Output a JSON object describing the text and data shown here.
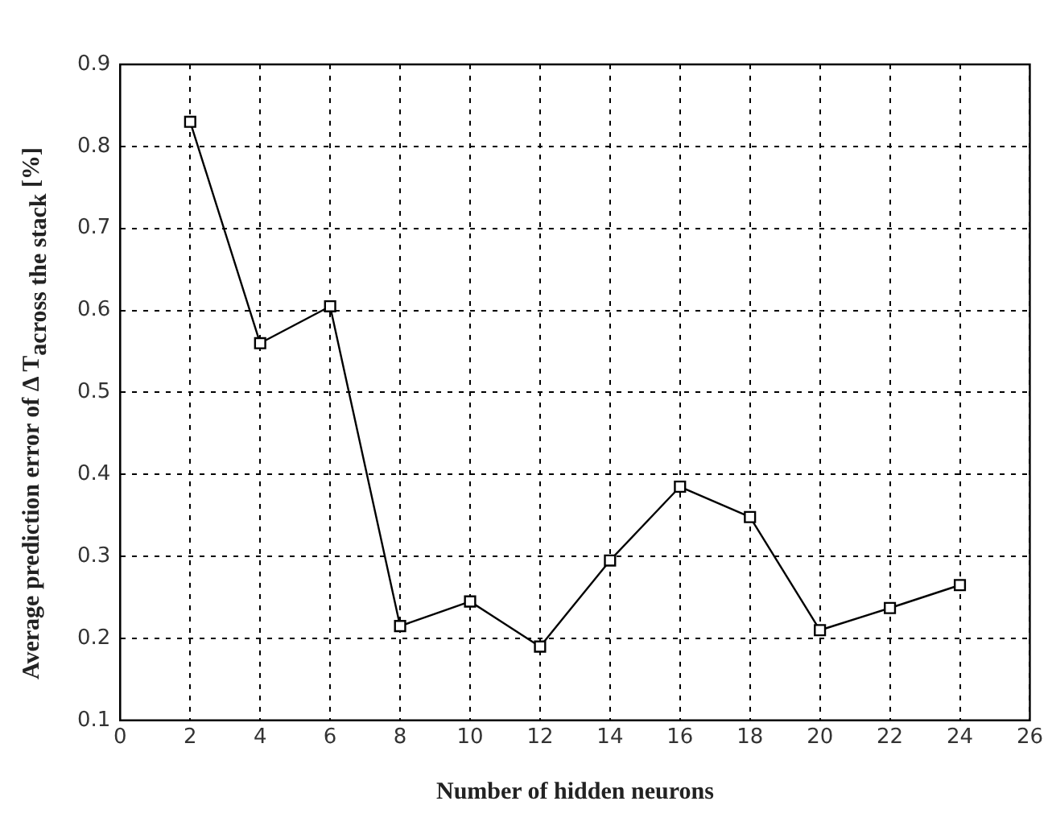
{
  "chart_data": {
    "type": "line",
    "xlabel": "Number of hidden neurons",
    "ylabel": "Average prediction error of  Δ T$_{across the stack}$  [%]",
    "x": [
      2,
      4,
      6,
      8,
      10,
      12,
      14,
      16,
      18,
      20,
      22,
      24
    ],
    "series": [
      {
        "color": "#000000",
        "values": [
          0.83,
          0.56,
          0.605,
          0.215,
          0.245,
          0.19,
          0.295,
          0.385,
          0.348,
          0.21,
          0.237,
          0.265
        ]
      }
    ],
    "xlim": [
      0,
      26
    ],
    "xticks": [
      0,
      2,
      4,
      6,
      8,
      10,
      12,
      14,
      16,
      18,
      20,
      22,
      24,
      26
    ],
    "ylim": [
      0.1,
      0.9
    ],
    "yticks": [
      0.1,
      0.2,
      0.3,
      0.4,
      0.5,
      0.6,
      0.7,
      0.8,
      0.9
    ],
    "grid": true,
    "marker": "square",
    "line_style": "solid",
    "legend": false
  }
}
